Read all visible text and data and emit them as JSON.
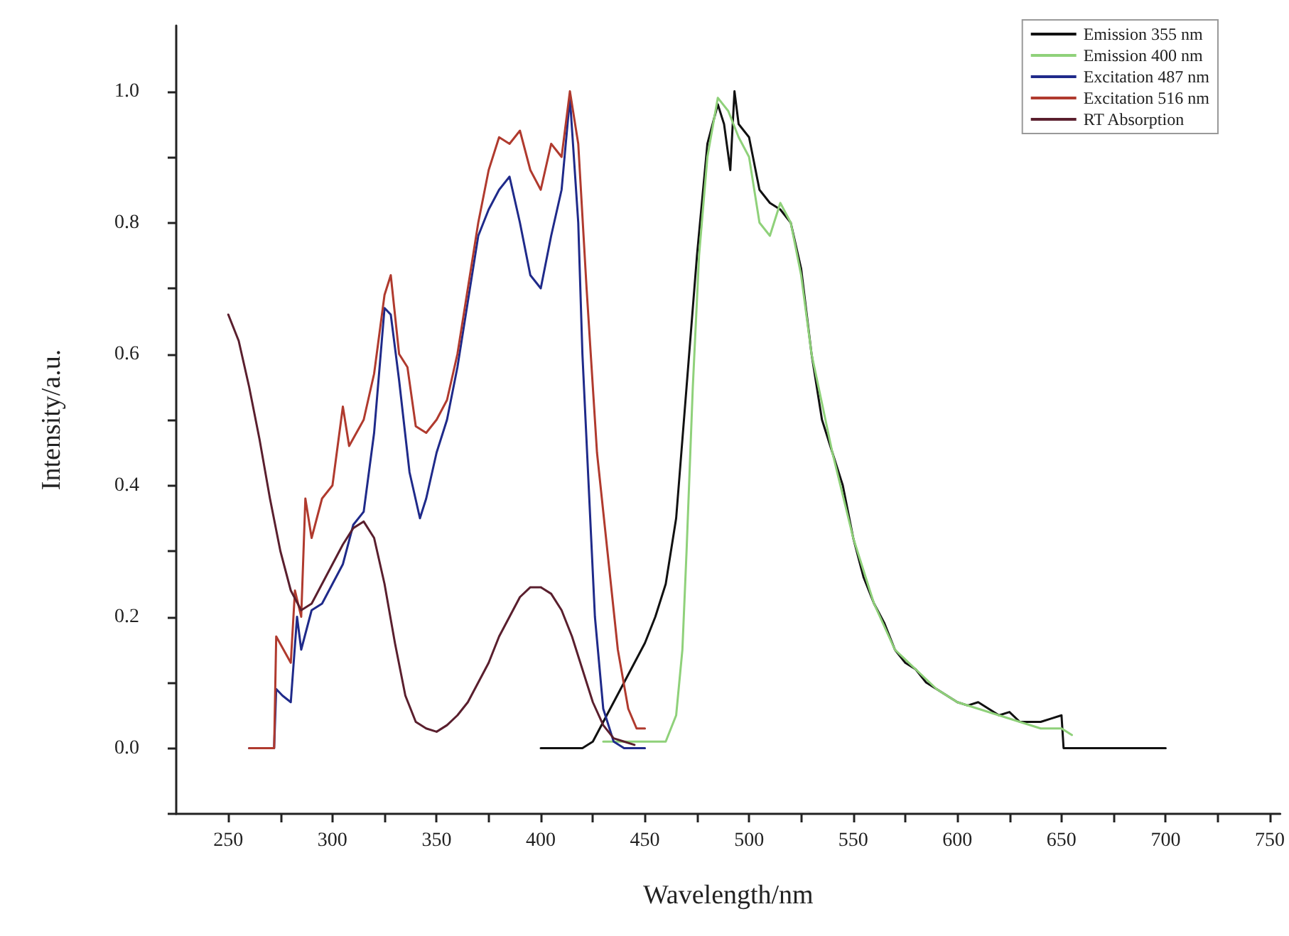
{
  "chart_data": {
    "type": "line",
    "xlabel": "Wavelength/nm",
    "ylabel": "Intensity/a.u.",
    "xlim": [
      225,
      755
    ],
    "ylim": [
      -0.1,
      1.1
    ],
    "xticks": [
      250,
      {
        "value": 275,
        "label": null
      },
      300,
      {
        "value": 325,
        "label": null
      },
      350,
      {
        "value": 375,
        "label": null
      },
      400,
      {
        "value": 425,
        "label": null
      },
      450,
      {
        "value": 475,
        "label": null
      },
      500,
      {
        "value": 525,
        "label": null
      },
      550,
      {
        "value": 575,
        "label": null
      },
      600,
      {
        "value": 625,
        "label": null
      },
      650,
      {
        "value": 675,
        "label": null
      },
      700,
      {
        "value": 725,
        "label": null
      },
      750
    ],
    "yticks": [
      {
        "value": -0.1,
        "label": null
      },
      {
        "value": 0,
        "label": "0.0"
      },
      {
        "value": 0.1,
        "label": null
      },
      {
        "value": 0.2,
        "label": "0.2"
      },
      {
        "value": 0.3,
        "label": null
      },
      {
        "value": 0.4,
        "label": "0.4"
      },
      {
        "value": 0.5,
        "label": null
      },
      {
        "value": 0.6,
        "label": "0.6"
      },
      {
        "value": 0.7,
        "label": null
      },
      {
        "value": 0.8,
        "label": "0.8"
      },
      {
        "value": 0.9,
        "label": null
      },
      {
        "value": 1,
        "label": "1.0"
      }
    ],
    "grid": false,
    "legend": "top right",
    "marker": "none",
    "line_style": "solid",
    "series": [
      {
        "name": "Emission 355 nm",
        "color": "#111111",
        "x": [
          400,
          420,
          425,
          430,
          435,
          440,
          445,
          450,
          455,
          460,
          465,
          470,
          475,
          480,
          485,
          488,
          491,
          493,
          495,
          500,
          505,
          510,
          515,
          520,
          525,
          530,
          535,
          540,
          545,
          550,
          555,
          560,
          565,
          570,
          575,
          580,
          585,
          590,
          595,
          600,
          605,
          610,
          615,
          620,
          625,
          630,
          640,
          645,
          650,
          651,
          700
        ],
        "values": [
          0,
          0,
          0.01,
          0.04,
          0.07,
          0.1,
          0.13,
          0.16,
          0.2,
          0.25,
          0.35,
          0.55,
          0.75,
          0.92,
          0.98,
          0.95,
          0.88,
          1.0,
          0.95,
          0.93,
          0.85,
          0.83,
          0.82,
          0.8,
          0.73,
          0.6,
          0.5,
          0.45,
          0.4,
          0.32,
          0.26,
          0.22,
          0.19,
          0.15,
          0.13,
          0.12,
          0.1,
          0.09,
          0.08,
          0.07,
          0.065,
          0.07,
          0.06,
          0.05,
          0.055,
          0.04,
          0.04,
          0.045,
          0.05,
          0,
          0
        ]
      },
      {
        "name": "Emission 400 nm",
        "color": "#8fd17a",
        "x": [
          430,
          450,
          460,
          465,
          468,
          470,
          473,
          476,
          480,
          485,
          490,
          495,
          500,
          505,
          510,
          515,
          520,
          525,
          530,
          540,
          550,
          560,
          570,
          580,
          590,
          600,
          610,
          620,
          630,
          640,
          650,
          655
        ],
        "values": [
          0.01,
          0.01,
          0.01,
          0.05,
          0.15,
          0.3,
          0.55,
          0.75,
          0.9,
          0.99,
          0.97,
          0.93,
          0.9,
          0.8,
          0.78,
          0.83,
          0.8,
          0.72,
          0.6,
          0.45,
          0.32,
          0.22,
          0.15,
          0.12,
          0.09,
          0.07,
          0.06,
          0.05,
          0.04,
          0.03,
          0.03,
          0.02
        ]
      },
      {
        "name": "Excitation 487 nm",
        "color": "#1f2a8a",
        "x": [
          260,
          272,
          273,
          276,
          280,
          283,
          285,
          290,
          295,
          300,
          305,
          310,
          315,
          320,
          325,
          328,
          332,
          337,
          342,
          345,
          350,
          355,
          360,
          365,
          370,
          375,
          380,
          385,
          390,
          395,
          400,
          405,
          410,
          414,
          418,
          420,
          423,
          426,
          430,
          435,
          440,
          450
        ],
        "values": [
          0,
          0,
          0.09,
          0.08,
          0.07,
          0.2,
          0.15,
          0.21,
          0.22,
          0.25,
          0.28,
          0.34,
          0.36,
          0.48,
          0.67,
          0.66,
          0.56,
          0.42,
          0.35,
          0.38,
          0.45,
          0.5,
          0.58,
          0.68,
          0.78,
          0.82,
          0.85,
          0.87,
          0.8,
          0.72,
          0.7,
          0.78,
          0.85,
          0.99,
          0.8,
          0.6,
          0.4,
          0.2,
          0.06,
          0.01,
          0,
          0
        ]
      },
      {
        "name": "Excitation 516 nm",
        "color": "#b03a2e",
        "x": [
          260,
          272,
          273,
          280,
          282,
          285,
          287,
          290,
          295,
          300,
          305,
          308,
          315,
          320,
          325,
          328,
          332,
          336,
          340,
          345,
          350,
          355,
          360,
          365,
          370,
          375,
          380,
          385,
          390,
          395,
          400,
          405,
          410,
          414,
          418,
          422,
          427,
          432,
          437,
          442,
          446,
          450
        ],
        "values": [
          0,
          0,
          0.17,
          0.13,
          0.24,
          0.2,
          0.38,
          0.32,
          0.38,
          0.4,
          0.52,
          0.46,
          0.5,
          0.57,
          0.69,
          0.72,
          0.6,
          0.58,
          0.49,
          0.48,
          0.5,
          0.53,
          0.6,
          0.7,
          0.8,
          0.88,
          0.93,
          0.92,
          0.94,
          0.88,
          0.85,
          0.92,
          0.9,
          1.0,
          0.92,
          0.7,
          0.45,
          0.3,
          0.15,
          0.06,
          0.03,
          0.03
        ]
      },
      {
        "name": "RT Absorption",
        "color": "#5a1f2e",
        "x": [
          250,
          255,
          260,
          265,
          270,
          275,
          280,
          285,
          290,
          295,
          300,
          305,
          310,
          315,
          320,
          325,
          330,
          335,
          340,
          345,
          350,
          355,
          360,
          365,
          370,
          375,
          380,
          385,
          390,
          395,
          400,
          405,
          410,
          415,
          420,
          425,
          430,
          435,
          440,
          445
        ],
        "values": [
          0.66,
          0.62,
          0.55,
          0.47,
          0.38,
          0.3,
          0.24,
          0.21,
          0.22,
          0.25,
          0.28,
          0.31,
          0.335,
          0.345,
          0.32,
          0.25,
          0.16,
          0.08,
          0.04,
          0.03,
          0.025,
          0.035,
          0.05,
          0.07,
          0.1,
          0.13,
          0.17,
          0.2,
          0.23,
          0.245,
          0.245,
          0.235,
          0.21,
          0.17,
          0.12,
          0.07,
          0.035,
          0.015,
          0.01,
          0.005
        ]
      }
    ]
  }
}
